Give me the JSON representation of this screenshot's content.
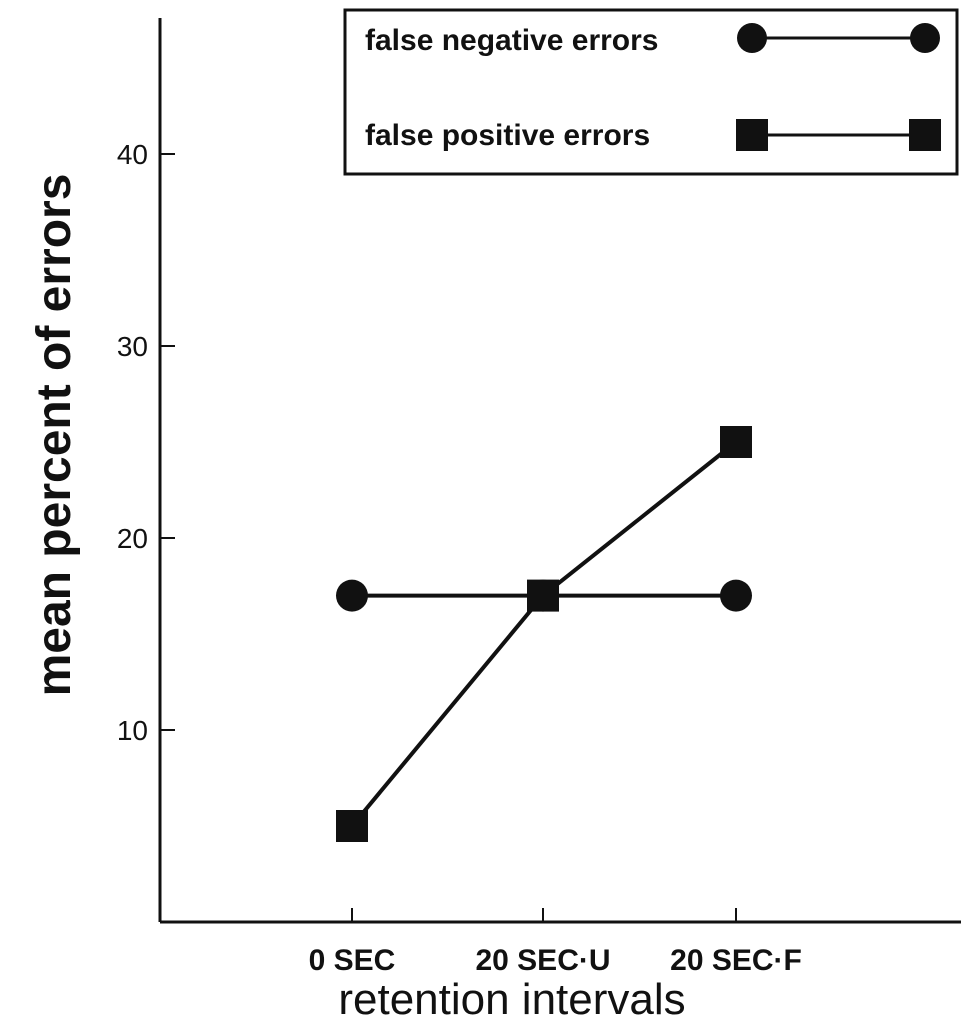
{
  "chart_data": {
    "type": "line",
    "title": "",
    "xlabel": "retention intervals",
    "ylabel": "mean percent of errors",
    "categories": [
      "0 SEC",
      "20 SEC·U",
      "20 SEC·F"
    ],
    "yticks": [
      "10",
      "20",
      "30",
      "40"
    ],
    "ylim": [
      0,
      45
    ],
    "grid": false,
    "legend_position": "top-right",
    "series": [
      {
        "name": "false negative errors",
        "marker": "circle",
        "values": [
          17,
          17,
          17
        ]
      },
      {
        "name": "false positive errors",
        "marker": "square",
        "values": [
          5,
          17,
          25
        ]
      }
    ],
    "colors": {
      "line": "#111111",
      "marker": "#111111",
      "background": "#ffffff"
    }
  }
}
